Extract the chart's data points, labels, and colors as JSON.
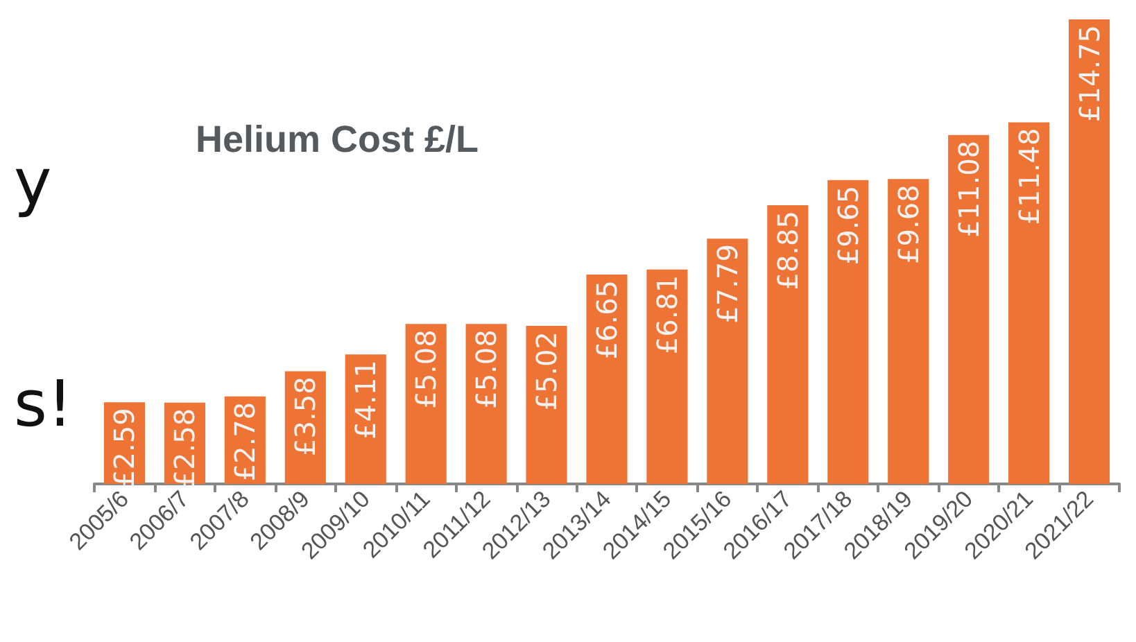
{
  "chart_data": {
    "type": "bar",
    "title": "Helium Cost £/L",
    "categories": [
      "2005/6",
      "2006/7",
      "2007/8",
      "2008/9",
      "2009/10",
      "2010/11",
      "2011/12",
      "2012/13",
      "2013/14",
      "2014/15",
      "2015/16",
      "2016/17",
      "2017/18",
      "2018/19",
      "2019/20",
      "2020/21",
      "2021/22"
    ],
    "values": [
      2.59,
      2.58,
      2.78,
      3.58,
      4.11,
      5.08,
      5.08,
      5.02,
      6.65,
      6.81,
      7.79,
      8.85,
      9.65,
      9.68,
      11.08,
      11.48,
      14.75
    ],
    "value_labels": [
      "£2.59",
      "£2.58",
      "£2.78",
      "£3.58",
      "£4.11",
      "£5.08",
      "£5.08",
      "£5.02",
      "£6.65",
      "£6.81",
      "£7.79",
      "£8.85",
      "£9.65",
      "£9.68",
      "£11.08",
      "£11.48",
      "£14.75"
    ],
    "color": "#ed7434",
    "annotations": [
      "y",
      "s!"
    ]
  }
}
